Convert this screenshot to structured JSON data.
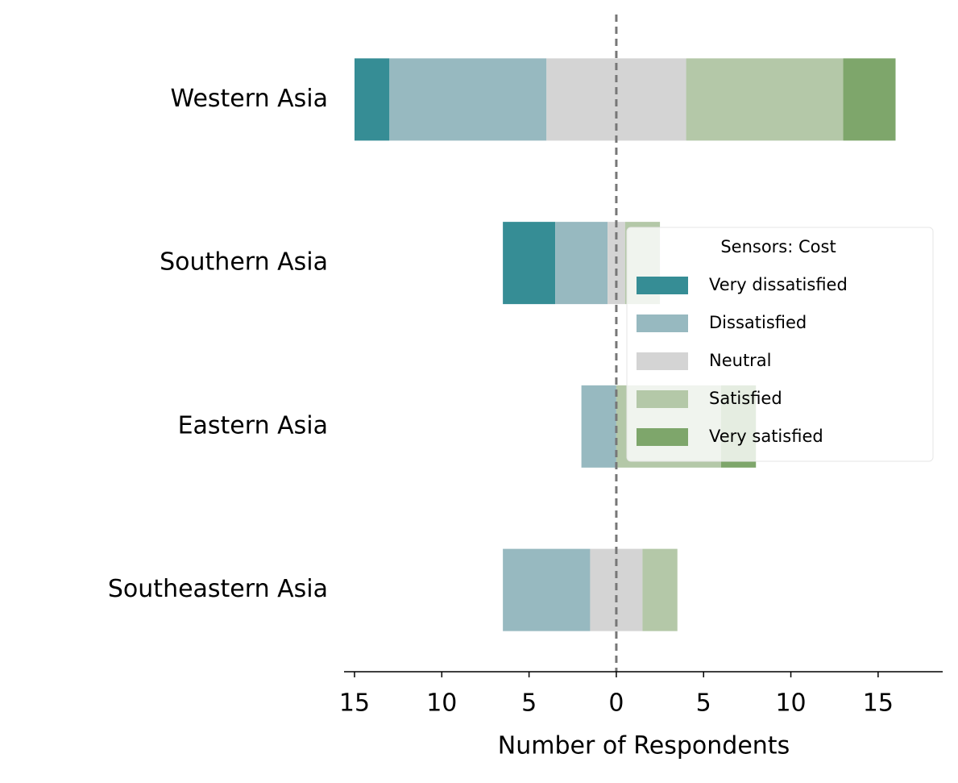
{
  "chart_data": {
    "type": "diverging_bar",
    "categories": [
      "Western Asia",
      "Southern Asia",
      "Eastern Asia",
      "Southeastern Asia"
    ],
    "series": [
      {
        "name": "Very dissatisfied",
        "color": "#368d95",
        "values": [
          2,
          3,
          0,
          0
        ]
      },
      {
        "name": "Dissatisfied",
        "color": "#97b9c0",
        "values": [
          9,
          3,
          2,
          5
        ]
      },
      {
        "name": "Neutral",
        "color": "#d4d4d4",
        "values": [
          8,
          1,
          0,
          3
        ]
      },
      {
        "name": "Satisfied",
        "color": "#b4c8a8",
        "values": [
          9,
          2,
          6,
          2
        ]
      },
      {
        "name": "Very satisfied",
        "color": "#7ea66b",
        "values": [
          3,
          0,
          2,
          0
        ]
      }
    ],
    "legend_title": "Sensors: Cost",
    "xlabel": "Number of Respondents",
    "xlim": [
      -15.6,
      18.7
    ],
    "xticks": [
      {
        "value": -15,
        "label": "15"
      },
      {
        "value": -10,
        "label": "10"
      },
      {
        "value": -5,
        "label": "5"
      },
      0,
      5,
      10,
      15
    ]
  }
}
